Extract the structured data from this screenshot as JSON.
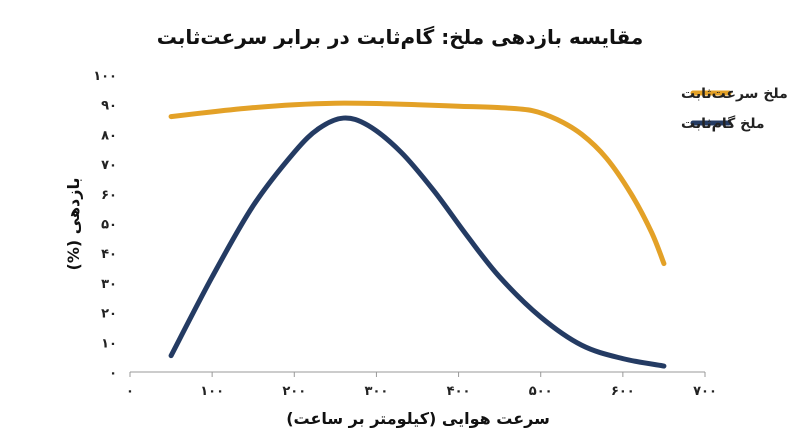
{
  "chart_data": {
    "type": "line",
    "title": "مقایسه بازدهی ملخ: گام‌ثابت در برابر سرعت‌ثابت",
    "xlabel": "سرعت هوایی (کیلومتر بر ساعت)",
    "ylabel": "بازدهی (%)",
    "xlim": [
      0,
      700
    ],
    "ylim": [
      0,
      100
    ],
    "x_ticks": [
      0,
      100,
      200,
      300,
      400,
      500,
      600,
      700
    ],
    "x_tick_labels": [
      "۰",
      "۱۰۰",
      "۲۰۰",
      "۳۰۰",
      "۴۰۰",
      "۵۰۰",
      "۶۰۰",
      "۷۰۰"
    ],
    "y_ticks": [
      0,
      10,
      20,
      30,
      40,
      50,
      60,
      70,
      80,
      90,
      100
    ],
    "y_tick_labels": [
      "۰",
      "۱۰",
      "۲۰",
      "۳۰",
      "۴۰",
      "۵۰",
      "۶۰",
      "۷۰",
      "۸۰",
      "۹۰",
      "۱۰۰"
    ],
    "grid": false,
    "legend_position": "top-right",
    "series": [
      {
        "name": "ملخ سرعت‌ثابت",
        "color": "#E3A127",
        "points": [
          [
            50,
            86
          ],
          [
            100,
            87.6
          ],
          [
            150,
            89
          ],
          [
            200,
            90
          ],
          [
            250,
            90.5
          ],
          [
            300,
            90.4
          ],
          [
            350,
            90
          ],
          [
            400,
            89.5
          ],
          [
            450,
            89
          ],
          [
            490,
            88
          ],
          [
            520,
            85
          ],
          [
            550,
            80
          ],
          [
            580,
            72
          ],
          [
            610,
            60
          ],
          [
            635,
            47
          ],
          [
            650,
            36.5
          ]
        ]
      },
      {
        "name": "ملخ گام‌ثابت",
        "color": "#243B63",
        "points": [
          [
            50,
            5.5
          ],
          [
            100,
            32
          ],
          [
            150,
            56
          ],
          [
            200,
            74
          ],
          [
            230,
            82
          ],
          [
            260,
            85.5
          ],
          [
            290,
            83
          ],
          [
            330,
            74
          ],
          [
            370,
            61
          ],
          [
            410,
            46
          ],
          [
            450,
            32
          ],
          [
            500,
            18.5
          ],
          [
            550,
            9
          ],
          [
            600,
            4.5
          ],
          [
            650,
            2
          ]
        ]
      }
    ]
  }
}
